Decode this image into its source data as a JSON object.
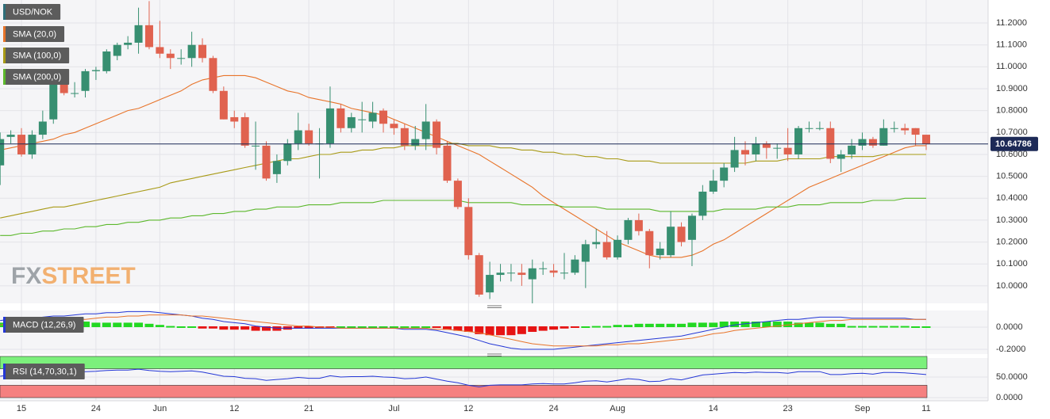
{
  "chart_data": [
    {
      "type": "candlestick",
      "title": "USD/NOK",
      "watermark": [
        "FX",
        "STREET"
      ],
      "grid": true,
      "categories": [
        null,
        null,
        "15",
        null,
        null,
        null,
        null,
        null,
        null,
        "24",
        null,
        null,
        null,
        null,
        null,
        "Jun",
        null,
        null,
        null,
        null,
        null,
        null,
        "12",
        null,
        null,
        null,
        null,
        null,
        null,
        "21",
        null,
        null,
        null,
        null,
        null,
        null,
        null,
        "Jul",
        null,
        null,
        null,
        null,
        null,
        null,
        "12",
        null,
        null,
        null,
        null,
        null,
        null,
        null,
        "24",
        null,
        null,
        null,
        null,
        null,
        "Aug",
        null,
        null,
        null,
        null,
        null,
        null,
        null,
        null,
        "14",
        null,
        null,
        null,
        null,
        null,
        null,
        "23",
        null,
        null,
        null,
        null,
        null,
        null,
        "Sep",
        null,
        null,
        null,
        null,
        null,
        "11"
      ],
      "color": "#2e6f7a",
      "up_color": "#378f71",
      "down_color": "#e0624f",
      "last_color": "#1d2a57",
      "open": [
        10.55,
        10.68,
        10.69,
        10.6,
        10.69,
        10.76,
        10.92,
        10.88,
        10.89,
        10.98,
        10.98,
        11.05,
        11.1,
        11.11,
        11.19,
        11.09,
        11.06,
        11.04,
        11.04,
        11.1,
        11.04,
        10.89,
        10.77,
        10.77,
        10.64,
        10.64,
        10.51,
        10.57,
        10.65,
        10.71,
        10.65,
        10.65,
        10.81,
        10.72,
        10.76,
        10.75,
        10.8,
        10.74,
        10.72,
        10.64,
        10.67,
        10.75,
        10.64,
        10.48,
        10.36,
        10.14,
        9.97,
        10.05,
        10.06,
        10.06,
        10.03,
        10.08,
        10.07,
        10.06,
        10.06,
        10.11,
        10.19,
        10.2,
        10.13,
        10.21,
        10.3,
        10.25,
        10.14,
        10.14,
        10.27,
        10.21,
        10.32,
        10.43,
        10.48,
        10.54,
        10.62,
        10.6,
        10.65,
        10.63,
        10.63,
        10.6,
        10.72,
        10.72,
        10.72,
        10.58,
        10.6,
        10.64,
        10.67,
        10.64,
        10.72,
        10.72,
        10.72,
        10.69
      ],
      "high": [
        10.7,
        10.71,
        10.72,
        10.71,
        10.8,
        10.94,
        10.98,
        10.93,
        10.99,
        11.0,
        11.08,
        11.11,
        11.14,
        11.27,
        11.3,
        11.21,
        11.08,
        11.08,
        11.16,
        11.13,
        11.05,
        10.91,
        10.8,
        10.79,
        10.75,
        10.66,
        10.6,
        10.67,
        10.79,
        10.74,
        10.72,
        10.91,
        10.83,
        10.79,
        10.84,
        10.84,
        10.81,
        10.76,
        10.74,
        10.73,
        10.83,
        10.76,
        10.66,
        10.49,
        10.4,
        10.15,
        10.11,
        10.1,
        10.1,
        10.1,
        10.12,
        10.11,
        10.1,
        10.15,
        10.14,
        10.21,
        10.26,
        10.25,
        10.23,
        10.31,
        10.33,
        10.26,
        10.2,
        10.34,
        10.29,
        10.33,
        10.46,
        10.53,
        10.56,
        10.68,
        10.66,
        10.68,
        10.66,
        10.65,
        10.72,
        10.73,
        10.75,
        10.75,
        10.75,
        10.62,
        10.67,
        10.7,
        10.68,
        10.76,
        10.75,
        10.74,
        10.72,
        10.69
      ],
      "low": [
        10.46,
        10.65,
        10.59,
        10.58,
        10.67,
        10.74,
        10.87,
        10.86,
        10.86,
        10.94,
        10.97,
        11.03,
        11.08,
        11.06,
        11.08,
        11.04,
        10.99,
        11.01,
        11.0,
        11.02,
        10.88,
        10.76,
        10.72,
        10.63,
        10.53,
        10.48,
        10.47,
        10.55,
        10.62,
        10.64,
        10.49,
        10.63,
        10.7,
        10.7,
        10.7,
        10.72,
        10.7,
        10.69,
        10.62,
        10.62,
        10.62,
        10.6,
        10.47,
        10.35,
        10.12,
        9.95,
        9.94,
        10.02,
        10.02,
        10.0,
        9.92,
        10.05,
        10.04,
        10.03,
        10.05,
        9.99,
        10.17,
        10.12,
        10.12,
        10.19,
        10.23,
        10.08,
        10.12,
        10.13,
        10.18,
        10.09,
        10.3,
        10.42,
        10.45,
        10.52,
        10.55,
        10.57,
        10.58,
        10.58,
        10.57,
        10.58,
        10.7,
        10.71,
        10.56,
        10.52,
        10.58,
        10.62,
        10.63,
        10.64,
        10.7,
        10.69,
        10.64,
        10.62
      ],
      "close": [
        10.67,
        10.69,
        10.6,
        10.69,
        10.75,
        10.93,
        10.88,
        10.88,
        10.98,
        10.985,
        11.07,
        11.1,
        11.11,
        11.19,
        11.09,
        11.06,
        11.04,
        11.04,
        11.1,
        11.04,
        10.89,
        10.76,
        10.75,
        10.64,
        10.64,
        10.49,
        10.57,
        10.65,
        10.71,
        10.65,
        10.65,
        10.81,
        10.72,
        10.77,
        10.76,
        10.79,
        10.74,
        10.72,
        10.64,
        10.67,
        10.75,
        10.63,
        10.48,
        10.36,
        10.14,
        9.96,
        10.05,
        10.06,
        10.06,
        10.05,
        10.08,
        10.08,
        10.06,
        10.06,
        10.12,
        10.19,
        10.2,
        10.13,
        10.21,
        10.3,
        10.25,
        10.14,
        10.17,
        10.27,
        10.2,
        10.32,
        10.43,
        10.48,
        10.54,
        10.62,
        10.6,
        10.65,
        10.63,
        10.63,
        10.6,
        10.72,
        10.72,
        10.72,
        10.58,
        10.6,
        10.64,
        10.67,
        10.64,
        10.72,
        10.72,
        10.71,
        10.69,
        10.64786
      ],
      "series": [
        {
          "name": "SMA (20,0)",
          "color": "#e8742a",
          "values": [
            10.62,
            10.63,
            10.64,
            10.65,
            10.66,
            10.67,
            10.69,
            10.7,
            10.72,
            10.74,
            10.76,
            10.78,
            10.8,
            10.81,
            10.83,
            10.85,
            10.87,
            10.89,
            10.92,
            10.94,
            10.95,
            10.96,
            10.96,
            10.96,
            10.95,
            10.93,
            10.91,
            10.89,
            10.88,
            10.86,
            10.85,
            10.84,
            10.83,
            10.81,
            10.8,
            10.79,
            10.78,
            10.76,
            10.74,
            10.72,
            10.7,
            10.68,
            10.66,
            10.64,
            10.62,
            10.6,
            10.57,
            10.54,
            10.51,
            10.48,
            10.45,
            10.41,
            10.38,
            10.35,
            10.32,
            10.29,
            10.26,
            10.23,
            10.2,
            10.18,
            10.16,
            10.14,
            10.13,
            10.13,
            10.13,
            10.14,
            10.16,
            10.19,
            10.21,
            10.24,
            10.27,
            10.3,
            10.33,
            10.36,
            10.39,
            10.42,
            10.45,
            10.47,
            10.49,
            10.51,
            10.53,
            10.55,
            10.57,
            10.59,
            10.61,
            10.63,
            10.64,
            10.64
          ]
        },
        {
          "name": "SMA (100,0)",
          "color": "#a89a16",
          "values": [
            10.31,
            10.32,
            10.33,
            10.34,
            10.35,
            10.36,
            10.36,
            10.37,
            10.38,
            10.39,
            10.4,
            10.41,
            10.42,
            10.43,
            10.44,
            10.45,
            10.47,
            10.48,
            10.49,
            10.5,
            10.51,
            10.52,
            10.53,
            10.54,
            10.55,
            10.56,
            10.57,
            10.58,
            10.58,
            10.59,
            10.6,
            10.6,
            10.61,
            10.61,
            10.62,
            10.62,
            10.63,
            10.63,
            10.64,
            10.64,
            10.64,
            10.64,
            10.65,
            10.65,
            10.64,
            10.64,
            10.64,
            10.63,
            10.63,
            10.62,
            10.62,
            10.61,
            10.61,
            10.6,
            10.6,
            10.59,
            10.59,
            10.58,
            10.58,
            10.57,
            10.57,
            10.57,
            10.56,
            10.56,
            10.56,
            10.56,
            10.56,
            10.56,
            10.56,
            10.56,
            10.56,
            10.57,
            10.57,
            10.57,
            10.58,
            10.58,
            10.58,
            10.58,
            10.59,
            10.59,
            10.59,
            10.59,
            10.59,
            10.6,
            10.6,
            10.6,
            10.6,
            10.6
          ]
        },
        {
          "name": "SMA (200,0)",
          "color": "#5cb82c",
          "values": [
            10.23,
            10.23,
            10.24,
            10.24,
            10.25,
            10.25,
            10.26,
            10.26,
            10.27,
            10.27,
            10.28,
            10.28,
            10.29,
            10.29,
            10.3,
            10.3,
            10.31,
            10.31,
            10.32,
            10.32,
            10.33,
            10.33,
            10.34,
            10.34,
            10.35,
            10.35,
            10.36,
            10.36,
            10.36,
            10.37,
            10.37,
            10.37,
            10.38,
            10.38,
            10.38,
            10.38,
            10.39,
            10.39,
            10.39,
            10.39,
            10.39,
            10.39,
            10.39,
            10.39,
            10.38,
            10.38,
            10.38,
            10.38,
            10.38,
            10.37,
            10.37,
            10.37,
            10.37,
            10.36,
            10.36,
            10.36,
            10.36,
            10.35,
            10.35,
            10.35,
            10.35,
            10.35,
            10.34,
            10.34,
            10.34,
            10.34,
            10.34,
            10.34,
            10.35,
            10.35,
            10.35,
            10.35,
            10.36,
            10.36,
            10.36,
            10.37,
            10.37,
            10.37,
            10.38,
            10.38,
            10.38,
            10.38,
            10.39,
            10.39,
            10.39,
            10.4,
            10.4,
            10.4
          ]
        }
      ],
      "ylim": [
        9.92,
        11.305
      ],
      "yticks": [
        {
          "value": 10,
          "label": "10.0000"
        },
        {
          "value": 10.1,
          "label": "10.1000"
        },
        {
          "value": 10.2,
          "label": "10.2000"
        },
        {
          "value": 10.3,
          "label": "10.3000"
        },
        {
          "value": 10.4,
          "label": "10.4000"
        },
        {
          "value": 10.5,
          "label": "10.5000"
        },
        {
          "value": 10.6,
          "label": "10.6000"
        },
        {
          "value": 10.7,
          "label": "10.7000"
        },
        {
          "value": 10.8,
          "label": "10.8000"
        },
        {
          "value": 10.9,
          "label": "10.9000"
        },
        {
          "value": 11,
          "label": "11.0000"
        },
        {
          "value": 11.1,
          "label": "11.1000"
        },
        {
          "value": 11.2,
          "label": "11.2000"
        }
      ]
    },
    {
      "type": "macd",
      "title": "MACD (12,26,9)",
      "color": "#2437d6",
      "signal_color": "#e8742a",
      "up_color": "#22d822",
      "down_color": "#e61414",
      "macd_line": [
        0.06,
        0.07,
        0.07,
        0.08,
        0.09,
        0.1,
        0.1,
        0.11,
        0.12,
        0.12,
        0.13,
        0.13,
        0.14,
        0.14,
        0.14,
        0.13,
        0.12,
        0.11,
        0.1,
        0.08,
        0.07,
        0.05,
        0.04,
        0.03,
        0.01,
        0.0,
        -0.01,
        -0.01,
        -0.01,
        -0.01,
        -0.01,
        -0.01,
        -0.01,
        -0.01,
        -0.01,
        -0.01,
        -0.01,
        -0.01,
        -0.02,
        -0.02,
        -0.02,
        -0.03,
        -0.05,
        -0.07,
        -0.09,
        -0.12,
        -0.15,
        -0.17,
        -0.19,
        -0.2,
        -0.2,
        -0.2,
        -0.2,
        -0.19,
        -0.18,
        -0.17,
        -0.16,
        -0.15,
        -0.14,
        -0.13,
        -0.12,
        -0.11,
        -0.1,
        -0.09,
        -0.08,
        -0.06,
        -0.04,
        -0.02,
        0.0,
        0.02,
        0.03,
        0.04,
        0.05,
        0.06,
        0.07,
        0.07,
        0.08,
        0.09,
        0.09,
        0.09,
        0.08,
        0.08,
        0.08,
        0.08,
        0.08,
        0.08,
        0.07,
        0.07
      ],
      "signal_line": [
        0.02,
        0.03,
        0.03,
        0.04,
        0.05,
        0.05,
        0.06,
        0.07,
        0.07,
        0.08,
        0.09,
        0.09,
        0.1,
        0.1,
        0.11,
        0.11,
        0.11,
        0.11,
        0.1,
        0.1,
        0.09,
        0.08,
        0.07,
        0.06,
        0.05,
        0.04,
        0.03,
        0.02,
        0.01,
        0.01,
        0.0,
        0.0,
        -0.01,
        -0.01,
        -0.01,
        -0.01,
        -0.01,
        -0.01,
        -0.01,
        -0.01,
        -0.01,
        -0.02,
        -0.02,
        -0.03,
        -0.04,
        -0.05,
        -0.07,
        -0.09,
        -0.11,
        -0.13,
        -0.15,
        -0.16,
        -0.17,
        -0.17,
        -0.17,
        -0.17,
        -0.17,
        -0.16,
        -0.16,
        -0.15,
        -0.15,
        -0.14,
        -0.13,
        -0.12,
        -0.11,
        -0.1,
        -0.08,
        -0.06,
        -0.05,
        -0.03,
        -0.02,
        -0.01,
        0.0,
        0.01,
        0.02,
        0.03,
        0.04,
        0.05,
        0.06,
        0.06,
        0.07,
        0.07,
        0.07,
        0.07,
        0.07,
        0.07,
        0.07,
        0.07
      ],
      "histogram": [
        0.04,
        0.04,
        0.04,
        0.04,
        0.04,
        0.05,
        0.04,
        0.04,
        0.05,
        0.04,
        0.04,
        0.04,
        0.04,
        0.04,
        0.03,
        0.02,
        0.01,
        0.0,
        0.0,
        -0.02,
        -0.02,
        -0.03,
        -0.03,
        -0.03,
        -0.04,
        -0.04,
        -0.04,
        -0.03,
        -0.02,
        -0.02,
        -0.01,
        -0.01,
        0.0,
        0.0,
        0.0,
        0.0,
        0.0,
        0.0,
        0.0,
        0.0,
        0.0,
        -0.01,
        -0.03,
        -0.04,
        -0.05,
        -0.07,
        -0.08,
        -0.08,
        -0.08,
        -0.07,
        -0.05,
        -0.04,
        -0.03,
        -0.02,
        -0.01,
        0.0,
        0.01,
        0.01,
        0.02,
        0.02,
        0.03,
        0.03,
        0.03,
        0.03,
        0.03,
        0.04,
        0.04,
        0.04,
        0.05,
        0.05,
        0.05,
        0.05,
        0.05,
        0.05,
        0.05,
        0.04,
        0.04,
        0.04,
        0.03,
        0.03,
        0.01,
        0.01,
        0.01,
        0.01,
        0.01,
        0.01,
        0.0,
        0.0
      ],
      "ylim": [
        -0.243,
        0.15
      ],
      "yticks": [
        {
          "value": 0,
          "label": "0.0000"
        },
        {
          "value": -0.2,
          "label": "-0.2000"
        }
      ]
    },
    {
      "type": "rsi",
      "title": "RSI (14,70,30,1)",
      "color": "#2437d6",
      "upper": 70,
      "lower": 30,
      "upper_color": "#7cf07c",
      "lower_color": "#f58080",
      "values": [
        52,
        55,
        53,
        56,
        58,
        62,
        60,
        61,
        63,
        64,
        66,
        67,
        67,
        69,
        66,
        64,
        63,
        64,
        65,
        62,
        57,
        52,
        51,
        47,
        46,
        42,
        44,
        46,
        49,
        47,
        47,
        53,
        50,
        51,
        51,
        52,
        50,
        49,
        46,
        47,
        50,
        45,
        40,
        36,
        30,
        26,
        30,
        31,
        31,
        31,
        33,
        34,
        33,
        33,
        36,
        40,
        41,
        38,
        42,
        46,
        44,
        39,
        40,
        46,
        43,
        49,
        55,
        57,
        59,
        61,
        60,
        62,
        61,
        61,
        59,
        63,
        63,
        63,
        56,
        56,
        58,
        59,
        57,
        61,
        61,
        60,
        58,
        56
      ],
      "ylim": [
        0,
        100
      ],
      "yticks": [
        {
          "value": 50,
          "label": "50.0000"
        },
        {
          "value": 0,
          "label": "0.0000"
        }
      ]
    }
  ]
}
